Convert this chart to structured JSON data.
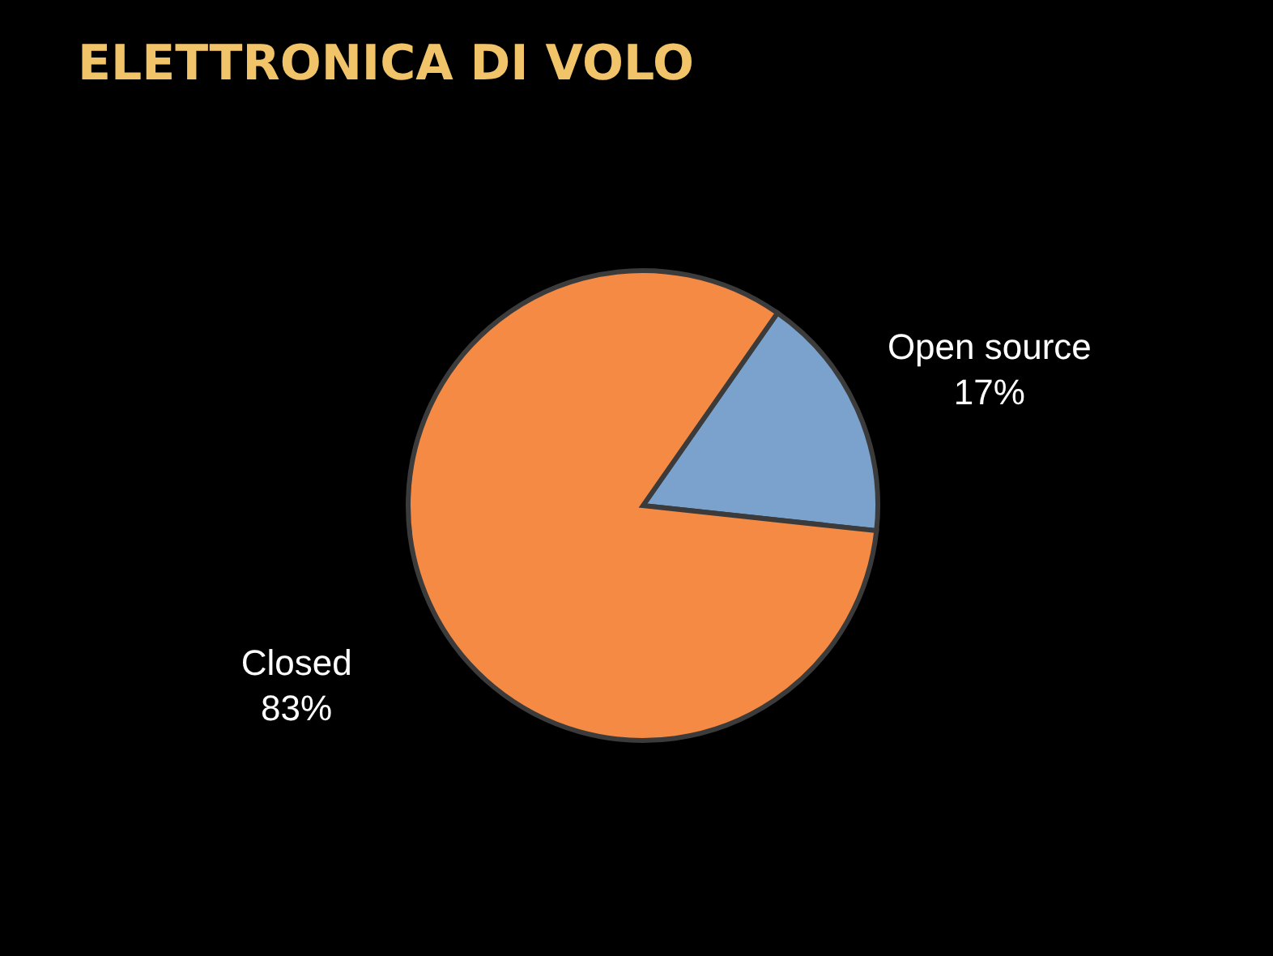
{
  "chart_data": {
    "type": "pie",
    "title": "ELETTRONICA DI VOLO",
    "categories": [
      "Open source",
      "Closed"
    ],
    "values": [
      17,
      83
    ],
    "colors": [
      "#7aa2cc",
      "#f58a45"
    ],
    "value_labels": [
      "17%",
      "83%"
    ]
  }
}
